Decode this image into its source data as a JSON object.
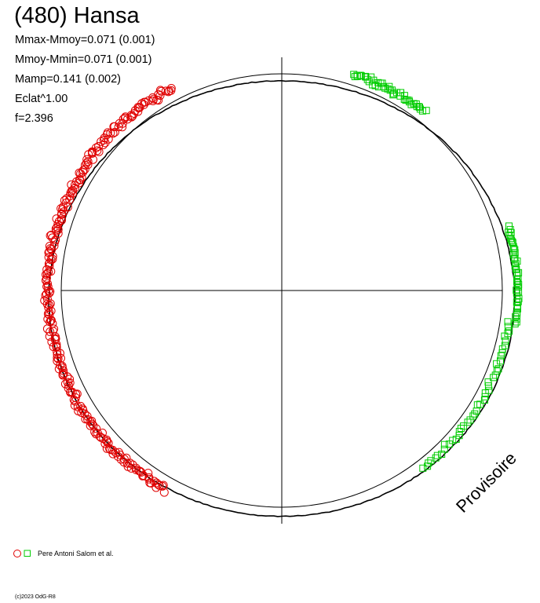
{
  "header": {
    "title": "(480) Hansa",
    "stats": [
      "Mmax-Mmoy=0.071 (0.001)",
      "Mmoy-Mmin=0.071 (0.001)",
      "Mamp=0.141 (0.002)",
      "Eclat^1.00",
      "f=2.396"
    ]
  },
  "watermark": "Provisoire",
  "legend": {
    "observers": "Pere Antoni Salom et al.",
    "series_colors": {
      "circles": "#e00000",
      "squares": "#00cc00"
    }
  },
  "credit": "(c)2023 OdG-R8",
  "chart_data": {
    "type": "scatter",
    "projection": "polar light curve",
    "reference_circle": {
      "radius": 1.0
    },
    "fit_curve_color": "#000000",
    "series": [
      {
        "name": "",
        "marker": "circle",
        "color": "#e00000",
        "angle_range_deg": [
          118,
          240
        ],
        "radius_mean": 1.06,
        "radius_scatter": 0.025
      },
      {
        "name": "",
        "marker": "square",
        "color": "#00cc00",
        "segments": [
          {
            "angle_range_deg": [
              52,
              72
            ],
            "radius_mean": 1.05,
            "radius_scatter": 0.02
          },
          {
            "angle_range_deg": [
              -8,
              16
            ],
            "radius_mean": 1.07,
            "radius_scatter": 0.01
          },
          {
            "angle_range_deg": [
              -52,
              -8
            ],
            "radius_mean": 1.04,
            "radius_scatter": 0.02
          }
        ]
      }
    ]
  }
}
